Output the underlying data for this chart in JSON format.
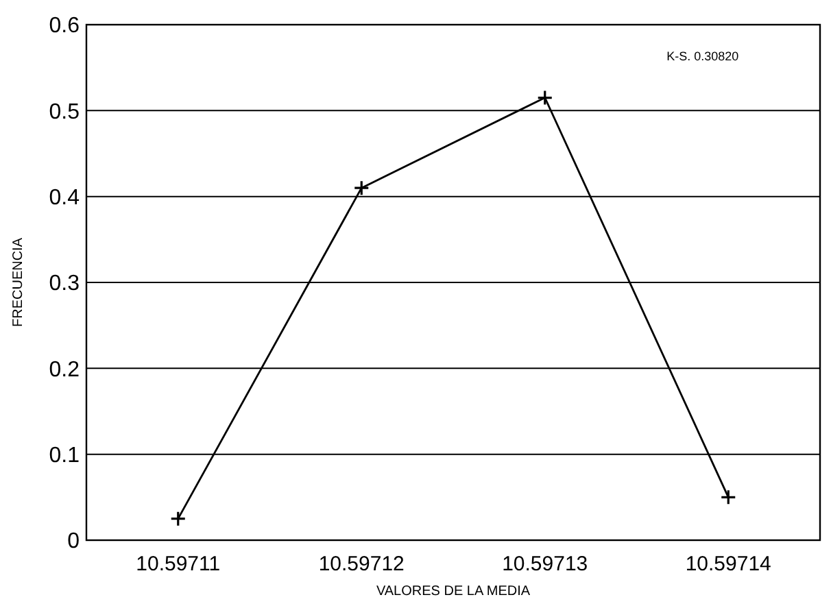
{
  "chart_data": {
    "type": "line",
    "xlabel": "VALORES DE LA MEDIA",
    "ylabel": "FRECUENCIA",
    "categories": [
      "10.59711",
      "10.59712",
      "10.59713",
      "10.59714"
    ],
    "series": [
      {
        "color": "#000000",
        "values": [
          0.025,
          0.41,
          0.515,
          0.05
        ]
      }
    ],
    "ylim": [
      0,
      0.6
    ],
    "yticks": [
      0,
      0.1,
      0.2,
      0.3,
      0.4,
      0.5,
      0.6
    ],
    "grid": "y",
    "marker": "cross",
    "line_style": "solid",
    "annotations": [
      "K-S. 0.30820"
    ]
  }
}
